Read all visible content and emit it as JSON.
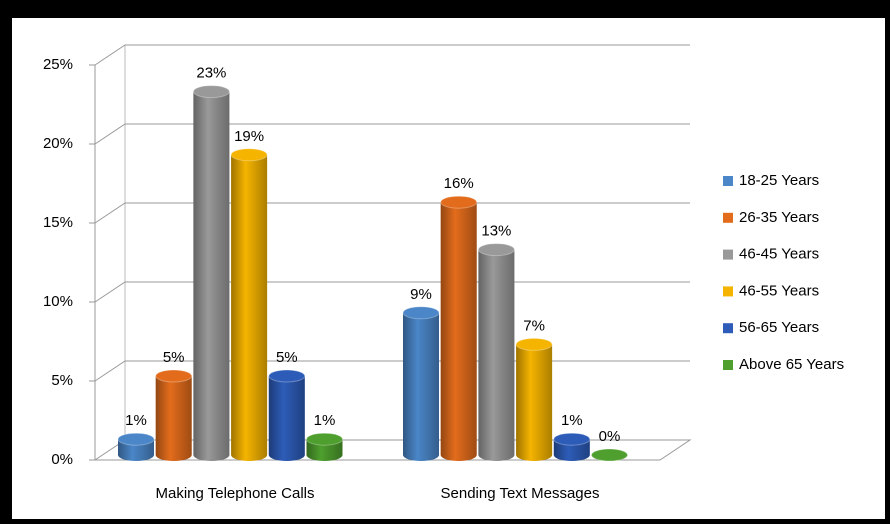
{
  "chart_data": {
    "type": "bar3d",
    "categories": [
      "Making Telephone Calls",
      "Sending Text Messages"
    ],
    "series": [
      {
        "name": "18-25 Years",
        "color": "#4a86c8",
        "values": [
          1,
          9
        ],
        "value_labels": [
          "1%",
          "9%"
        ]
      },
      {
        "name": "26-35 Years",
        "color": "#e36c1c",
        "values": [
          5,
          16
        ],
        "value_labels": [
          "5%",
          "16%"
        ]
      },
      {
        "name": "46-45 Years",
        "color": "#999999",
        "values": [
          23,
          13
        ],
        "value_labels": [
          "23%",
          "13%"
        ]
      },
      {
        "name": "46-55 Years",
        "color": "#f5b400",
        "values": [
          19,
          7
        ],
        "value_labels": [
          "19%",
          "7%"
        ]
      },
      {
        "name": "56-65 Years",
        "color": "#2d5cb8",
        "values": [
          5,
          1
        ],
        "value_labels": [
          "5%",
          "1%"
        ]
      },
      {
        "name": "Above 65 Years",
        "color": "#4e9f2e",
        "values": [
          1,
          0
        ],
        "value_labels": [
          "1%",
          "0%"
        ]
      }
    ],
    "ylim": [
      0,
      25
    ],
    "yticks": [
      {
        "value": 0,
        "label": "0%"
      },
      {
        "value": 5,
        "label": "5%"
      },
      {
        "value": 10,
        "label": "10%"
      },
      {
        "value": 15,
        "label": "15%"
      },
      {
        "value": 20,
        "label": "20%"
      },
      {
        "value": 25,
        "label": "25%"
      }
    ],
    "grid": true,
    "legend": "right"
  }
}
